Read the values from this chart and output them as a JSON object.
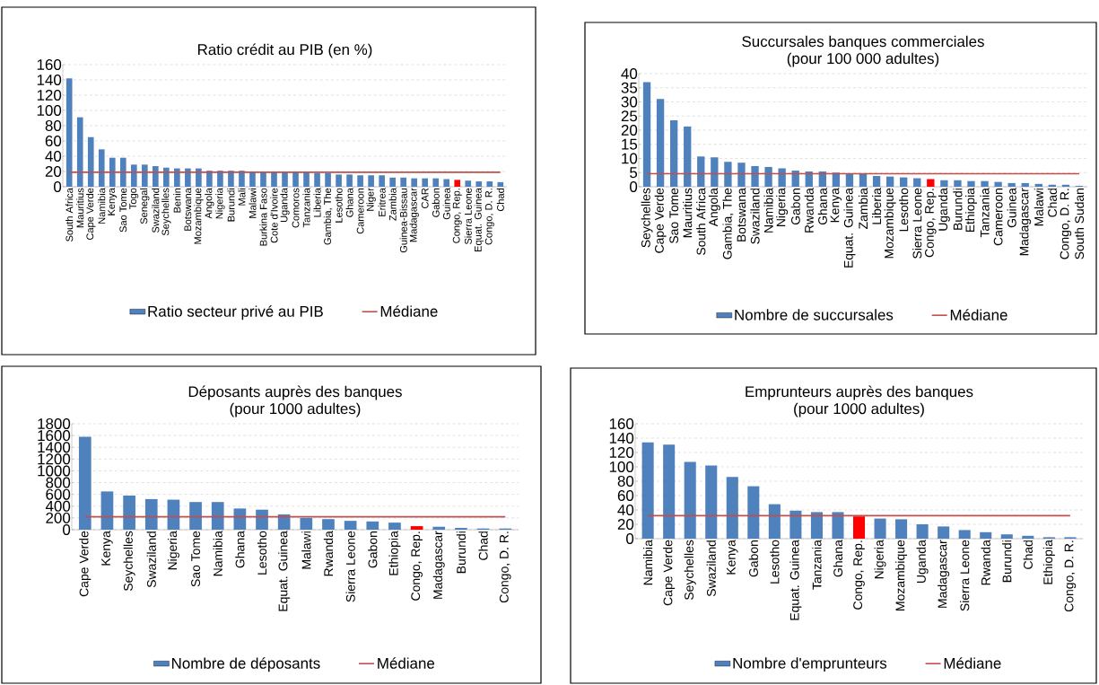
{
  "chart_data": [
    {
      "type": "bar",
      "title": "Ratio crédit au PIB (en %)",
      "categories": [
        "South Africa",
        "Mauritius",
        "Cape Verde",
        "Namibia",
        "Kenya",
        "Sao Tome",
        "Togo",
        "Senegal",
        "Swaziland",
        "Seychelles",
        "Benin",
        "Botswana",
        "Mozambique",
        "Angola",
        "Nigeria",
        "Burundi",
        "Mali",
        "Malawi",
        "Burkina Faso",
        "Cote d'Ivoire",
        "Uganda",
        "Comoros",
        "Tanzania",
        "Liberia",
        "Gambia, The",
        "Lesotho",
        "Ghana",
        "Cameroon",
        "Niger",
        "Eritrea",
        "Zambia",
        "Guinea-Bissau",
        "Madagascar",
        "CAR",
        "Gabon",
        "Guinea",
        "Congo, Rep.",
        "Sierra Leone",
        "Equat. Guinea",
        "Congo, D. R.",
        "Chad"
      ],
      "ylim": [
        0,
        160
      ],
      "yticks": [
        0,
        20,
        40,
        60,
        80,
        100,
        120,
        140,
        160
      ],
      "grid": "y",
      "legend": "bottom",
      "series": [
        {
          "name": "Ratio secteur privé au PIB",
          "color": "#4f81bd",
          "colors": [
            "#4f81bd",
            "#4f81bd",
            "#4f81bd",
            "#4f81bd",
            "#4f81bd",
            "#4f81bd",
            "#4f81bd",
            "#4f81bd",
            "#4f81bd",
            "#4f81bd",
            "#4f81bd",
            "#4f81bd",
            "#4f81bd",
            "#4f81bd",
            "#4f81bd",
            "#4f81bd",
            "#4f81bd",
            "#4f81bd",
            "#4f81bd",
            "#4f81bd",
            "#4f81bd",
            "#4f81bd",
            "#4f81bd",
            "#4f81bd",
            "#4f81bd",
            "#4f81bd",
            "#4f81bd",
            "#4f81bd",
            "#4f81bd",
            "#4f81bd",
            "#4f81bd",
            "#4f81bd",
            "#4f81bd",
            "#4f81bd",
            "#4f81bd",
            "#4f81bd",
            "#ff0000",
            "#4f81bd",
            "#4f81bd",
            "#4f81bd",
            "#4f81bd"
          ],
          "values": [
            142,
            91,
            65,
            49,
            38,
            38,
            29,
            29,
            27,
            25,
            24,
            24,
            24,
            21,
            21,
            21,
            21,
            20,
            19,
            19,
            19,
            19,
            19,
            18,
            18,
            16,
            16,
            15,
            15,
            15,
            12,
            12,
            11,
            11,
            11,
            10,
            9,
            8,
            7,
            7,
            6
          ]
        },
        {
          "name": "Médiane",
          "type": "line",
          "color": "#c0504d",
          "values": [
            19,
            19,
            19,
            19,
            19,
            19,
            19,
            19,
            19,
            19,
            19,
            19,
            19,
            19,
            19,
            19,
            19,
            19,
            19,
            19,
            19,
            19,
            19,
            19,
            19,
            19,
            19,
            19,
            19,
            19,
            19,
            19,
            19,
            19,
            19,
            19,
            19,
            19,
            19,
            19,
            19
          ]
        }
      ]
    },
    {
      "type": "bar",
      "title": "Succursales banques commerciales",
      "subtitle": "(pour 100 000 adultes)",
      "categories": [
        "Seychelles",
        "Cape Verde",
        "Sao Tome",
        "Mauritius",
        "South Africa",
        "Angola",
        "Gambia, The",
        "Botswana",
        "Swaziland",
        "Namibia",
        "Nigeria",
        "Gabon",
        "Rwanda",
        "Ghana",
        "Kenya",
        "Equat. Guinea",
        "Zambia",
        "Liberia",
        "Mozambique",
        "Lesotho",
        "Sierra Leone",
        "Congo, Rep.",
        "Uganda",
        "Burundi",
        "Ethiopia",
        "Tanzania",
        "Cameroon",
        "Guinea",
        "Madagascar",
        "Malawi",
        "Chad",
        "Congo, D. R.",
        "South Sudan"
      ],
      "ylim": [
        0,
        40
      ],
      "yticks": [
        0,
        5,
        10,
        15,
        20,
        25,
        30,
        35,
        40
      ],
      "grid": "y",
      "legend": "bottom",
      "series": [
        {
          "name": "Nombre de succursales",
          "color": "#4f81bd",
          "colors": [
            "#4f81bd",
            "#4f81bd",
            "#4f81bd",
            "#4f81bd",
            "#4f81bd",
            "#4f81bd",
            "#4f81bd",
            "#4f81bd",
            "#4f81bd",
            "#4f81bd",
            "#4f81bd",
            "#4f81bd",
            "#4f81bd",
            "#4f81bd",
            "#4f81bd",
            "#4f81bd",
            "#4f81bd",
            "#4f81bd",
            "#4f81bd",
            "#4f81bd",
            "#4f81bd",
            "#ff0000",
            "#4f81bd",
            "#4f81bd",
            "#4f81bd",
            "#4f81bd",
            "#4f81bd",
            "#4f81bd",
            "#4f81bd",
            "#4f81bd",
            "#4f81bd",
            "#4f81bd",
            "#4f81bd"
          ],
          "values": [
            37,
            31,
            23.5,
            21.3,
            10.7,
            10.4,
            8.8,
            8.5,
            7.3,
            7,
            6.5,
            5.7,
            5.4,
            5.4,
            5,
            4.7,
            4.5,
            3.8,
            3.6,
            3.3,
            3,
            2.7,
            2.3,
            2.3,
            2,
            2,
            1.7,
            1.3,
            1.3,
            1,
            0.7,
            0.7,
            0.3
          ]
        },
        {
          "name": "Médiane",
          "type": "line",
          "color": "#c0504d",
          "values": [
            4.6,
            4.6,
            4.6,
            4.6,
            4.6,
            4.6,
            4.6,
            4.6,
            4.6,
            4.6,
            4.6,
            4.6,
            4.6,
            4.6,
            4.6,
            4.6,
            4.6,
            4.6,
            4.6,
            4.6,
            4.6,
            4.6,
            4.6,
            4.6,
            4.6,
            4.6,
            4.6,
            4.6,
            4.6,
            4.6,
            4.6,
            4.6,
            4.6
          ]
        }
      ]
    },
    {
      "type": "bar",
      "title": "Déposants auprès des banques",
      "subtitle": "(pour 1000 adultes)",
      "categories": [
        "Cape Verde",
        "Kenya",
        "Seychelles",
        "Swaziland",
        "Nigeria",
        "Sao Tome",
        "Namibia",
        "Ghana",
        "Lesotho",
        "Equat. Guinea",
        "Malawi",
        "Rwanda",
        "Sierra Leone",
        "Gabon",
        "Ethiopia",
        "Congo, Rep.",
        "Madagascar",
        "Burundi",
        "Chad",
        "Congo, D. R."
      ],
      "ylim": [
        0,
        1800
      ],
      "yticks": [
        0,
        200,
        400,
        600,
        800,
        1000,
        1200,
        1400,
        1600,
        1800
      ],
      "grid": "y",
      "legend": "bottom",
      "series": [
        {
          "name": "Nombre de déposants",
          "color": "#4f81bd",
          "colors": [
            "#4f81bd",
            "#4f81bd",
            "#4f81bd",
            "#4f81bd",
            "#4f81bd",
            "#4f81bd",
            "#4f81bd",
            "#4f81bd",
            "#4f81bd",
            "#4f81bd",
            "#4f81bd",
            "#4f81bd",
            "#4f81bd",
            "#4f81bd",
            "#4f81bd",
            "#ff0000",
            "#4f81bd",
            "#4f81bd",
            "#4f81bd",
            "#4f81bd"
          ],
          "values": [
            1580,
            650,
            580,
            520,
            510,
            470,
            470,
            360,
            340,
            260,
            200,
            180,
            150,
            140,
            120,
            60,
            50,
            30,
            20,
            20
          ]
        },
        {
          "name": "Médiane",
          "type": "line",
          "color": "#c0504d",
          "values": [
            220,
            220,
            220,
            220,
            220,
            220,
            220,
            220,
            220,
            220,
            220,
            220,
            220,
            220,
            220,
            220,
            220,
            220,
            220,
            220
          ]
        }
      ]
    },
    {
      "type": "bar",
      "title": "Emprunteurs auprès des banques",
      "subtitle": "(pour 1000 adultes)",
      "categories": [
        "Namibia",
        "Cape Verde",
        "Seychelles",
        "Swaziland",
        "Kenya",
        "Gabon",
        "Lesotho",
        "Equat. Guinea",
        "Tanzania",
        "Ghana",
        "Congo, Rep.",
        "Nigeria",
        "Mozambique",
        "Uganda",
        "Madagascar",
        "Sierra Leone",
        "Rwanda",
        "Burundi",
        "Chad",
        "Ethiopia",
        "Congo, D. R."
      ],
      "ylim": [
        0,
        160
      ],
      "yticks": [
        0,
        20,
        40,
        60,
        80,
        100,
        120,
        140,
        160
      ],
      "grid": "y",
      "legend": "bottom",
      "series": [
        {
          "name": "Nombre d'emprunteurs",
          "color": "#4f81bd",
          "colors": [
            "#4f81bd",
            "#4f81bd",
            "#4f81bd",
            "#4f81bd",
            "#4f81bd",
            "#4f81bd",
            "#4f81bd",
            "#4f81bd",
            "#4f81bd",
            "#4f81bd",
            "#ff0000",
            "#4f81bd",
            "#4f81bd",
            "#4f81bd",
            "#4f81bd",
            "#4f81bd",
            "#4f81bd",
            "#4f81bd",
            "#4f81bd",
            "#4f81bd",
            "#4f81bd"
          ],
          "values": [
            134,
            131,
            107,
            102,
            86,
            73,
            48,
            39,
            37,
            37,
            31,
            28,
            27,
            20,
            17,
            12,
            9,
            6,
            4,
            2,
            2
          ]
        },
        {
          "name": "Médiane",
          "type": "line",
          "color": "#c0504d",
          "values": [
            32,
            32,
            32,
            32,
            32,
            32,
            32,
            32,
            32,
            32,
            32,
            32,
            32,
            32,
            32,
            32,
            32,
            32,
            32,
            32,
            32
          ]
        }
      ]
    }
  ]
}
